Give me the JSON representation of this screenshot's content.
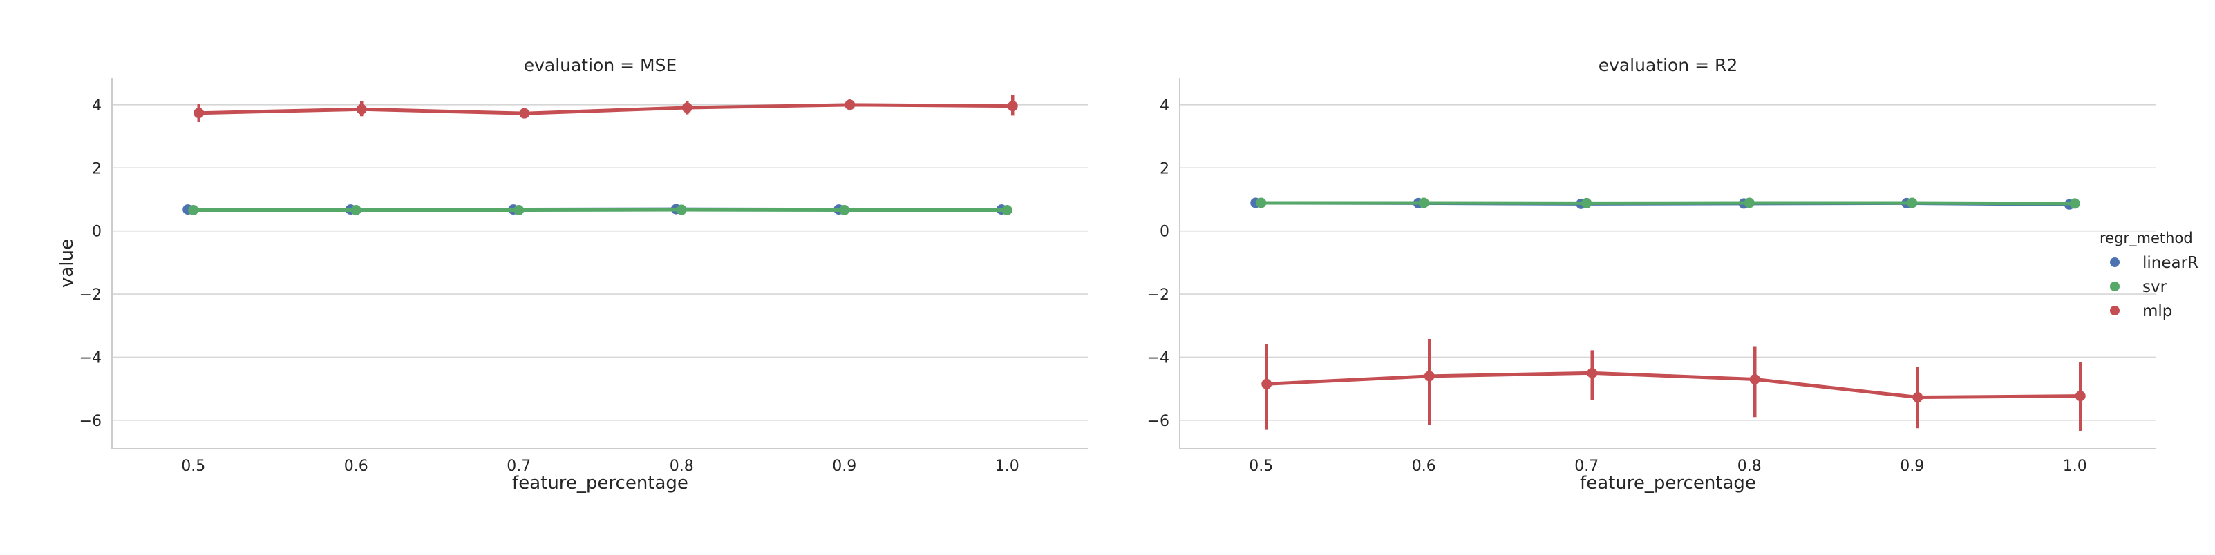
{
  "chart_data": [
    {
      "type": "line",
      "title": "evaluation = MSE",
      "xlabel": "feature_percentage",
      "ylabel": "value",
      "categories": [
        "0.5",
        "0.6",
        "0.7",
        "0.8",
        "0.9",
        "1.0"
      ],
      "ylim": [
        -6.9,
        4.85
      ],
      "yticks": [
        4,
        2,
        0,
        -2,
        -4,
        -6
      ],
      "ytick_labels": [
        "4",
        "2",
        "0",
        "−2",
        "−4",
        "−6"
      ],
      "grid": "horizontal",
      "series": [
        {
          "name": "linearR",
          "color": "#4c72b0",
          "values": [
            0.68,
            0.68,
            0.68,
            0.69,
            0.68,
            0.68
          ],
          "err_low": [
            0.63,
            0.63,
            0.63,
            0.64,
            0.63,
            0.63
          ],
          "err_high": [
            0.73,
            0.73,
            0.73,
            0.74,
            0.73,
            0.73
          ]
        },
        {
          "name": "svr",
          "color": "#55a868",
          "values": [
            0.66,
            0.66,
            0.66,
            0.67,
            0.66,
            0.66
          ],
          "err_low": [
            0.61,
            0.61,
            0.61,
            0.62,
            0.61,
            0.61
          ],
          "err_high": [
            0.71,
            0.71,
            0.71,
            0.72,
            0.71,
            0.71
          ]
        },
        {
          "name": "mlp",
          "color": "#c44e52",
          "values": [
            3.74,
            3.86,
            3.73,
            3.91,
            4.0,
            3.96
          ],
          "err_low": [
            3.45,
            3.64,
            3.6,
            3.7,
            3.82,
            3.66
          ],
          "err_high": [
            4.03,
            4.12,
            3.88,
            4.12,
            4.17,
            4.32
          ]
        }
      ]
    },
    {
      "type": "line",
      "title": "evaluation = R2",
      "xlabel": "feature_percentage",
      "ylabel": "",
      "categories": [
        "0.5",
        "0.6",
        "0.7",
        "0.8",
        "0.9",
        "1.0"
      ],
      "ylim": [
        -6.9,
        4.85
      ],
      "yticks": [
        4,
        2,
        0,
        -2,
        -4,
        -6
      ],
      "ytick_labels": [
        "4",
        "2",
        "0",
        "−2",
        "−4",
        "−6"
      ],
      "grid": "horizontal",
      "series": [
        {
          "name": "linearR",
          "color": "#4c72b0",
          "values": [
            0.89,
            0.88,
            0.86,
            0.87,
            0.88,
            0.84
          ],
          "err_low": [
            0.85,
            0.84,
            0.82,
            0.83,
            0.84,
            0.8
          ],
          "err_high": [
            0.93,
            0.92,
            0.9,
            0.91,
            0.92,
            0.88
          ]
        },
        {
          "name": "svr",
          "color": "#55a868",
          "values": [
            0.89,
            0.89,
            0.88,
            0.89,
            0.89,
            0.87
          ],
          "err_low": [
            0.85,
            0.85,
            0.84,
            0.85,
            0.85,
            0.83
          ],
          "err_high": [
            0.93,
            0.93,
            0.92,
            0.93,
            0.93,
            0.91
          ]
        },
        {
          "name": "mlp",
          "color": "#c44e52",
          "values": [
            -4.85,
            -4.6,
            -4.5,
            -4.7,
            -5.27,
            -5.23
          ],
          "err_low": [
            -6.3,
            -6.15,
            -5.35,
            -5.9,
            -6.25,
            -6.33
          ],
          "err_high": [
            -3.58,
            -3.42,
            -3.78,
            -3.65,
            -4.3,
            -4.15
          ]
        }
      ]
    }
  ],
  "legend": {
    "title": "regr_method",
    "entries": [
      {
        "label": "linearR",
        "color": "#4c72b0"
      },
      {
        "label": "svr",
        "color": "#55a868"
      },
      {
        "label": "mlp",
        "color": "#c44e52"
      }
    ]
  }
}
